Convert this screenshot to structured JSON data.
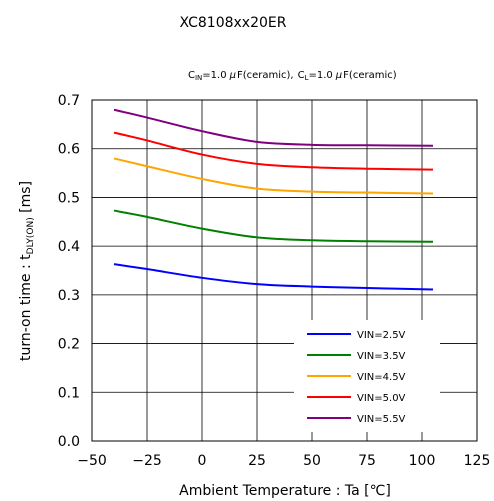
{
  "chart_data": {
    "type": "line",
    "title": "XC8108xx20ER",
    "condition": {
      "cin_prefix": "C",
      "cin_sub": "IN",
      "cin_value": "=1.0",
      "mu": "μ",
      "cin_unit": "F(ceramic),",
      "cl_prefix": "C",
      "cl_sub": "L",
      "cl_value": "=1.0",
      "cl_unit": "F(ceramic)"
    },
    "xlabel": "Ambient Temperature : Ta [℃]",
    "ylabel": {
      "prefix": "turn-on time : t",
      "sub": "DLY(ON)",
      "suffix": " [ms]"
    },
    "xlim": [
      -50,
      125
    ],
    "ylim": [
      0.0,
      0.7
    ],
    "x_ticks": [
      "−50",
      "−25",
      "0",
      "25",
      "50",
      "75",
      "100",
      "125"
    ],
    "y_ticks": [
      "0.0",
      "0.1",
      "0.2",
      "0.3",
      "0.4",
      "0.5",
      "0.6",
      "0.7"
    ],
    "grid": true,
    "legend_position": "bottom-right",
    "x": [
      -40,
      -25,
      0,
      25,
      50,
      75,
      105
    ],
    "series": [
      {
        "name": "VIN=2.5V",
        "color": "#0000ff",
        "values": [
          0.363,
          0.353,
          0.335,
          0.322,
          0.317,
          0.314,
          0.311
        ]
      },
      {
        "name": "VIN=3.5V",
        "color": "#008000",
        "values": [
          0.473,
          0.46,
          0.436,
          0.418,
          0.412,
          0.41,
          0.409
        ]
      },
      {
        "name": "VIN=4.5V",
        "color": "#ffa500",
        "values": [
          0.58,
          0.564,
          0.538,
          0.518,
          0.512,
          0.51,
          0.508
        ]
      },
      {
        "name": "VIN=5.0V",
        "color": "#ff0000",
        "values": [
          0.633,
          0.617,
          0.588,
          0.569,
          0.562,
          0.559,
          0.557
        ]
      },
      {
        "name": "VIN=5.5V",
        "color": "#800080",
        "values": [
          0.68,
          0.664,
          0.636,
          0.614,
          0.608,
          0.607,
          0.606
        ]
      }
    ]
  }
}
